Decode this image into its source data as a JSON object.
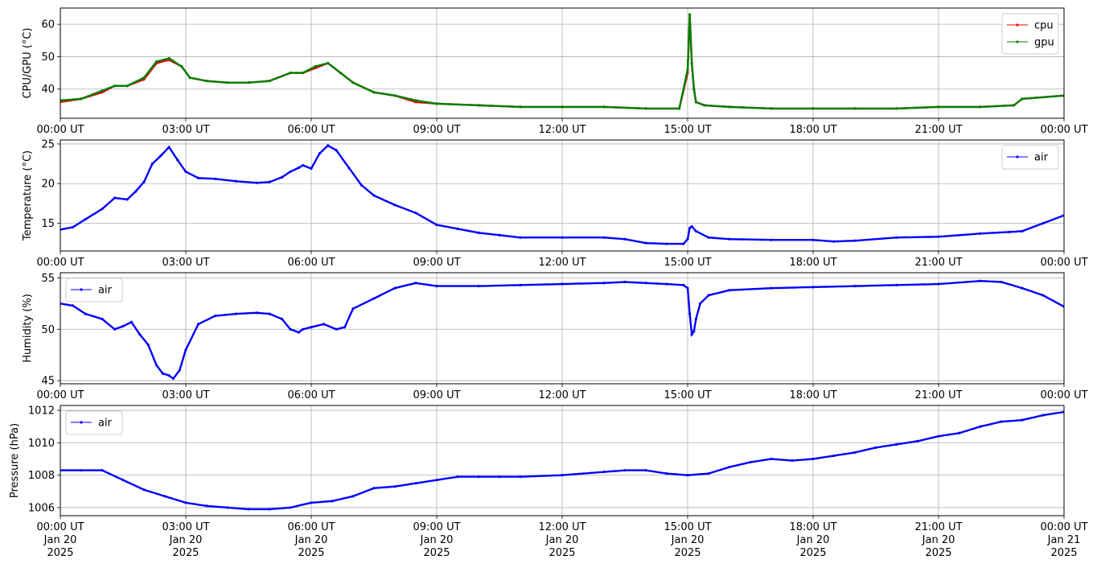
{
  "figure": {
    "x_ticks": [
      "00:00 UT",
      "03:00 UT",
      "06:00 UT",
      "09:00 UT",
      "12:00 UT",
      "15:00 UT",
      "18:00 UT",
      "21:00 UT",
      "00:00 UT"
    ],
    "x_ticks_last_panel": [
      [
        "00:00 UT",
        "Jan 20",
        "2025"
      ],
      [
        "03:00 UT",
        "Jan 20",
        "2025"
      ],
      [
        "06:00 UT",
        "Jan 20",
        "2025"
      ],
      [
        "09:00 UT",
        "Jan 20",
        "2025"
      ],
      [
        "12:00 UT",
        "Jan 20",
        "2025"
      ],
      [
        "15:00 UT",
        "Jan 20",
        "2025"
      ],
      [
        "18:00 UT",
        "Jan 20",
        "2025"
      ],
      [
        "21:00 UT",
        "Jan 20",
        "2025"
      ],
      [
        "00:00 UT",
        "Jan 21",
        "2025"
      ]
    ]
  },
  "chart_data": [
    {
      "type": "line",
      "ylabel": "CPU/GPU (°C)",
      "x_unit": "hours since 2025-01-20 00:00 UT",
      "xlim": [
        0,
        24
      ],
      "ylim": [
        31,
        65
      ],
      "yticks": [
        40,
        50,
        60
      ],
      "grid": true,
      "legend": "top-right",
      "series": [
        {
          "name": "cpu",
          "color": "#ff0000",
          "x": [
            0,
            0.5,
            1,
            1.3,
            1.6,
            2.0,
            2.3,
            2.6,
            2.9,
            3.1,
            3.5,
            4.0,
            4.5,
            5.0,
            5.5,
            5.8,
            6.1,
            6.4,
            6.7,
            7.0,
            7.5,
            8.0,
            8.5,
            9.0,
            10,
            11,
            12,
            13,
            14,
            14.8,
            15.0,
            15.05,
            15.1,
            15.15,
            15.2,
            15.4,
            16,
            17,
            18,
            19,
            20,
            21,
            22,
            22.8,
            23.0,
            24
          ],
          "y": [
            36,
            37,
            39,
            41,
            41,
            43,
            48,
            49,
            47,
            43.5,
            42.5,
            42,
            42,
            42.5,
            45,
            45,
            46.5,
            48,
            45,
            42,
            39,
            38,
            36,
            35.5,
            35,
            34.5,
            34.5,
            34.5,
            34,
            34,
            45,
            63,
            48,
            40,
            36,
            35,
            34.5,
            34,
            34,
            34,
            34,
            34.5,
            34.5,
            35,
            37,
            38
          ]
        },
        {
          "name": "gpu",
          "color": "#008000",
          "x": [
            0,
            0.5,
            1,
            1.3,
            1.6,
            2.0,
            2.3,
            2.6,
            2.9,
            3.1,
            3.5,
            4.0,
            4.5,
            5.0,
            5.5,
            5.8,
            6.1,
            6.4,
            6.7,
            7.0,
            7.5,
            8.0,
            8.5,
            9.0,
            10,
            11,
            12,
            13,
            14,
            14.8,
            15.0,
            15.05,
            15.1,
            15.15,
            15.2,
            15.4,
            16,
            17,
            18,
            19,
            20,
            21,
            22,
            22.8,
            23.0,
            24
          ],
          "y": [
            36.5,
            37,
            39.5,
            41,
            41,
            43.5,
            48.5,
            49.5,
            47,
            43.5,
            42.5,
            42,
            42,
            42.5,
            45,
            45,
            47,
            48,
            45,
            42,
            39,
            38,
            36.5,
            35.5,
            35,
            34.5,
            34.5,
            34.5,
            34,
            34,
            46,
            63,
            48,
            40,
            36,
            35,
            34.5,
            34,
            34,
            34,
            34,
            34.5,
            34.5,
            35,
            37,
            38
          ]
        }
      ]
    },
    {
      "type": "line",
      "ylabel": "Temperature (°C)",
      "x_unit": "hours since 2025-01-20 00:00 UT",
      "xlim": [
        0,
        24
      ],
      "ylim": [
        11.5,
        25.5
      ],
      "yticks": [
        15,
        20,
        25
      ],
      "grid": true,
      "legend": "top-right",
      "series": [
        {
          "name": "air",
          "color": "#0000ff",
          "x": [
            0,
            0.3,
            0.6,
            1.0,
            1.3,
            1.6,
            1.8,
            2.0,
            2.2,
            2.4,
            2.6,
            2.8,
            3.0,
            3.3,
            3.7,
            4.2,
            4.7,
            5.0,
            5.3,
            5.5,
            5.7,
            5.8,
            6.0,
            6.2,
            6.4,
            6.6,
            6.9,
            7.2,
            7.5,
            8.0,
            8.5,
            9.0,
            9.5,
            10,
            10.5,
            11,
            12,
            13,
            13.5,
            14,
            14.5,
            14.9,
            15.0,
            15.05,
            15.1,
            15.2,
            15.5,
            16,
            17,
            18,
            18.5,
            19,
            20,
            21,
            22,
            22.7,
            23.0,
            23.5,
            24
          ],
          "y": [
            14.2,
            14.5,
            15.5,
            16.8,
            18.2,
            18.0,
            19.0,
            20.2,
            22.5,
            23.5,
            24.6,
            23.0,
            21.5,
            20.7,
            20.6,
            20.3,
            20.1,
            20.2,
            20.8,
            21.5,
            22.0,
            22.3,
            21.9,
            23.8,
            24.8,
            24.2,
            22.0,
            19.8,
            18.5,
            17.3,
            16.3,
            14.8,
            14.3,
            13.8,
            13.5,
            13.2,
            13.2,
            13.2,
            13.0,
            12.5,
            12.4,
            12.4,
            13.0,
            14.4,
            14.6,
            14.0,
            13.2,
            13.0,
            12.9,
            12.9,
            12.7,
            12.8,
            13.2,
            13.3,
            13.7,
            13.9,
            14.0,
            15.0,
            16.0
          ]
        }
      ]
    },
    {
      "type": "line",
      "ylabel": "Humidity (%)",
      "x_unit": "hours since 2025-01-20 00:00 UT",
      "xlim": [
        0,
        24
      ],
      "ylim": [
        44.7,
        55.5
      ],
      "yticks": [
        45,
        50,
        55
      ],
      "grid": true,
      "legend": "top-left",
      "series": [
        {
          "name": "air",
          "color": "#0000ff",
          "x": [
            0,
            0.3,
            0.6,
            1.0,
            1.3,
            1.5,
            1.7,
            1.9,
            2.1,
            2.3,
            2.45,
            2.6,
            2.7,
            2.85,
            3.0,
            3.3,
            3.7,
            4.2,
            4.7,
            5.0,
            5.3,
            5.5,
            5.7,
            5.8,
            6.0,
            6.3,
            6.6,
            6.8,
            7.0,
            7.5,
            8.0,
            8.5,
            9.0,
            10,
            11,
            12,
            13,
            13.5,
            14,
            14.5,
            14.9,
            15.0,
            15.05,
            15.1,
            15.15,
            15.2,
            15.3,
            15.5,
            16,
            17,
            18,
            19,
            20,
            21,
            22,
            22.5,
            23.0,
            23.5,
            24
          ],
          "y": [
            52.5,
            52.3,
            51.5,
            51.0,
            50.0,
            50.3,
            50.7,
            49.5,
            48.5,
            46.5,
            45.7,
            45.5,
            45.2,
            46.0,
            48.0,
            50.5,
            51.3,
            51.5,
            51.6,
            51.5,
            51.0,
            50.0,
            49.7,
            50.0,
            50.2,
            50.5,
            50.0,
            50.2,
            52.0,
            53.0,
            54.0,
            54.5,
            54.2,
            54.2,
            54.3,
            54.4,
            54.5,
            54.6,
            54.5,
            54.4,
            54.3,
            54.0,
            51.5,
            49.5,
            49.8,
            51.0,
            52.5,
            53.3,
            53.8,
            54.0,
            54.1,
            54.2,
            54.3,
            54.4,
            54.7,
            54.6,
            54.0,
            53.3,
            52.2
          ]
        }
      ]
    },
    {
      "type": "line",
      "ylabel": "Pressure (hPa)",
      "x_unit": "hours since 2025-01-20 00:00 UT",
      "xlim": [
        0,
        24
      ],
      "ylim": [
        1005.5,
        1012.3
      ],
      "yticks": [
        1006,
        1008,
        1010,
        1012
      ],
      "grid": true,
      "legend": "top-left",
      "series": [
        {
          "name": "air",
          "color": "#0000ff",
          "x": [
            0,
            0.5,
            1.0,
            1.5,
            2.0,
            2.5,
            3.0,
            3.5,
            4.0,
            4.5,
            5.0,
            5.5,
            6.0,
            6.5,
            7.0,
            7.5,
            8.0,
            8.5,
            9.0,
            9.5,
            10,
            10.5,
            11,
            12,
            13,
            13.5,
            14,
            14.5,
            15,
            15.5,
            16,
            16.5,
            17,
            17.5,
            18,
            18.5,
            19,
            19.5,
            20,
            20.5,
            21,
            21.5,
            22,
            22.5,
            23,
            23.5,
            24
          ],
          "y": [
            1008.3,
            1008.3,
            1008.3,
            1007.7,
            1007.1,
            1006.7,
            1006.3,
            1006.1,
            1006.0,
            1005.9,
            1005.9,
            1006.0,
            1006.3,
            1006.4,
            1006.7,
            1007.2,
            1007.3,
            1007.5,
            1007.7,
            1007.9,
            1007.9,
            1007.9,
            1007.9,
            1008.0,
            1008.2,
            1008.3,
            1008.3,
            1008.1,
            1008.0,
            1008.1,
            1008.5,
            1008.8,
            1009.0,
            1008.9,
            1009.0,
            1009.2,
            1009.4,
            1009.7,
            1009.9,
            1010.1,
            1010.4,
            1010.6,
            1011.0,
            1011.3,
            1011.4,
            1011.7,
            1011.9
          ]
        }
      ]
    }
  ]
}
